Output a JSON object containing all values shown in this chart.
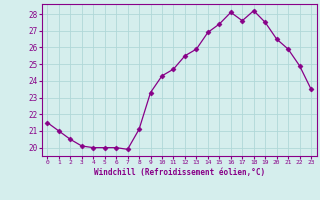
{
  "x": [
    0,
    1,
    2,
    3,
    4,
    5,
    6,
    7,
    8,
    9,
    10,
    11,
    12,
    13,
    14,
    15,
    16,
    17,
    18,
    19,
    20,
    21,
    22,
    23
  ],
  "y": [
    21.5,
    21.0,
    20.5,
    20.1,
    20.0,
    20.0,
    20.0,
    19.9,
    21.1,
    23.3,
    24.3,
    24.7,
    25.5,
    25.9,
    26.9,
    27.4,
    28.1,
    27.6,
    28.2,
    27.5,
    26.5,
    25.9,
    24.9,
    23.5
  ],
  "xlabel": "Windchill (Refroidissement éolien,°C)",
  "ylim": [
    19.5,
    28.6
  ],
  "yticks": [
    20,
    21,
    22,
    23,
    24,
    25,
    26,
    27,
    28
  ],
  "xlim": [
    -0.5,
    23.5
  ],
  "xticks": [
    0,
    1,
    2,
    3,
    4,
    5,
    6,
    7,
    8,
    9,
    10,
    11,
    12,
    13,
    14,
    15,
    16,
    17,
    18,
    19,
    20,
    21,
    22,
    23
  ],
  "line_color": "#880088",
  "marker": "D",
  "marker_size": 2.5,
  "bg_color": "#d5eeed",
  "grid_color": "#b0d8d8",
  "spine_color": "#888888"
}
